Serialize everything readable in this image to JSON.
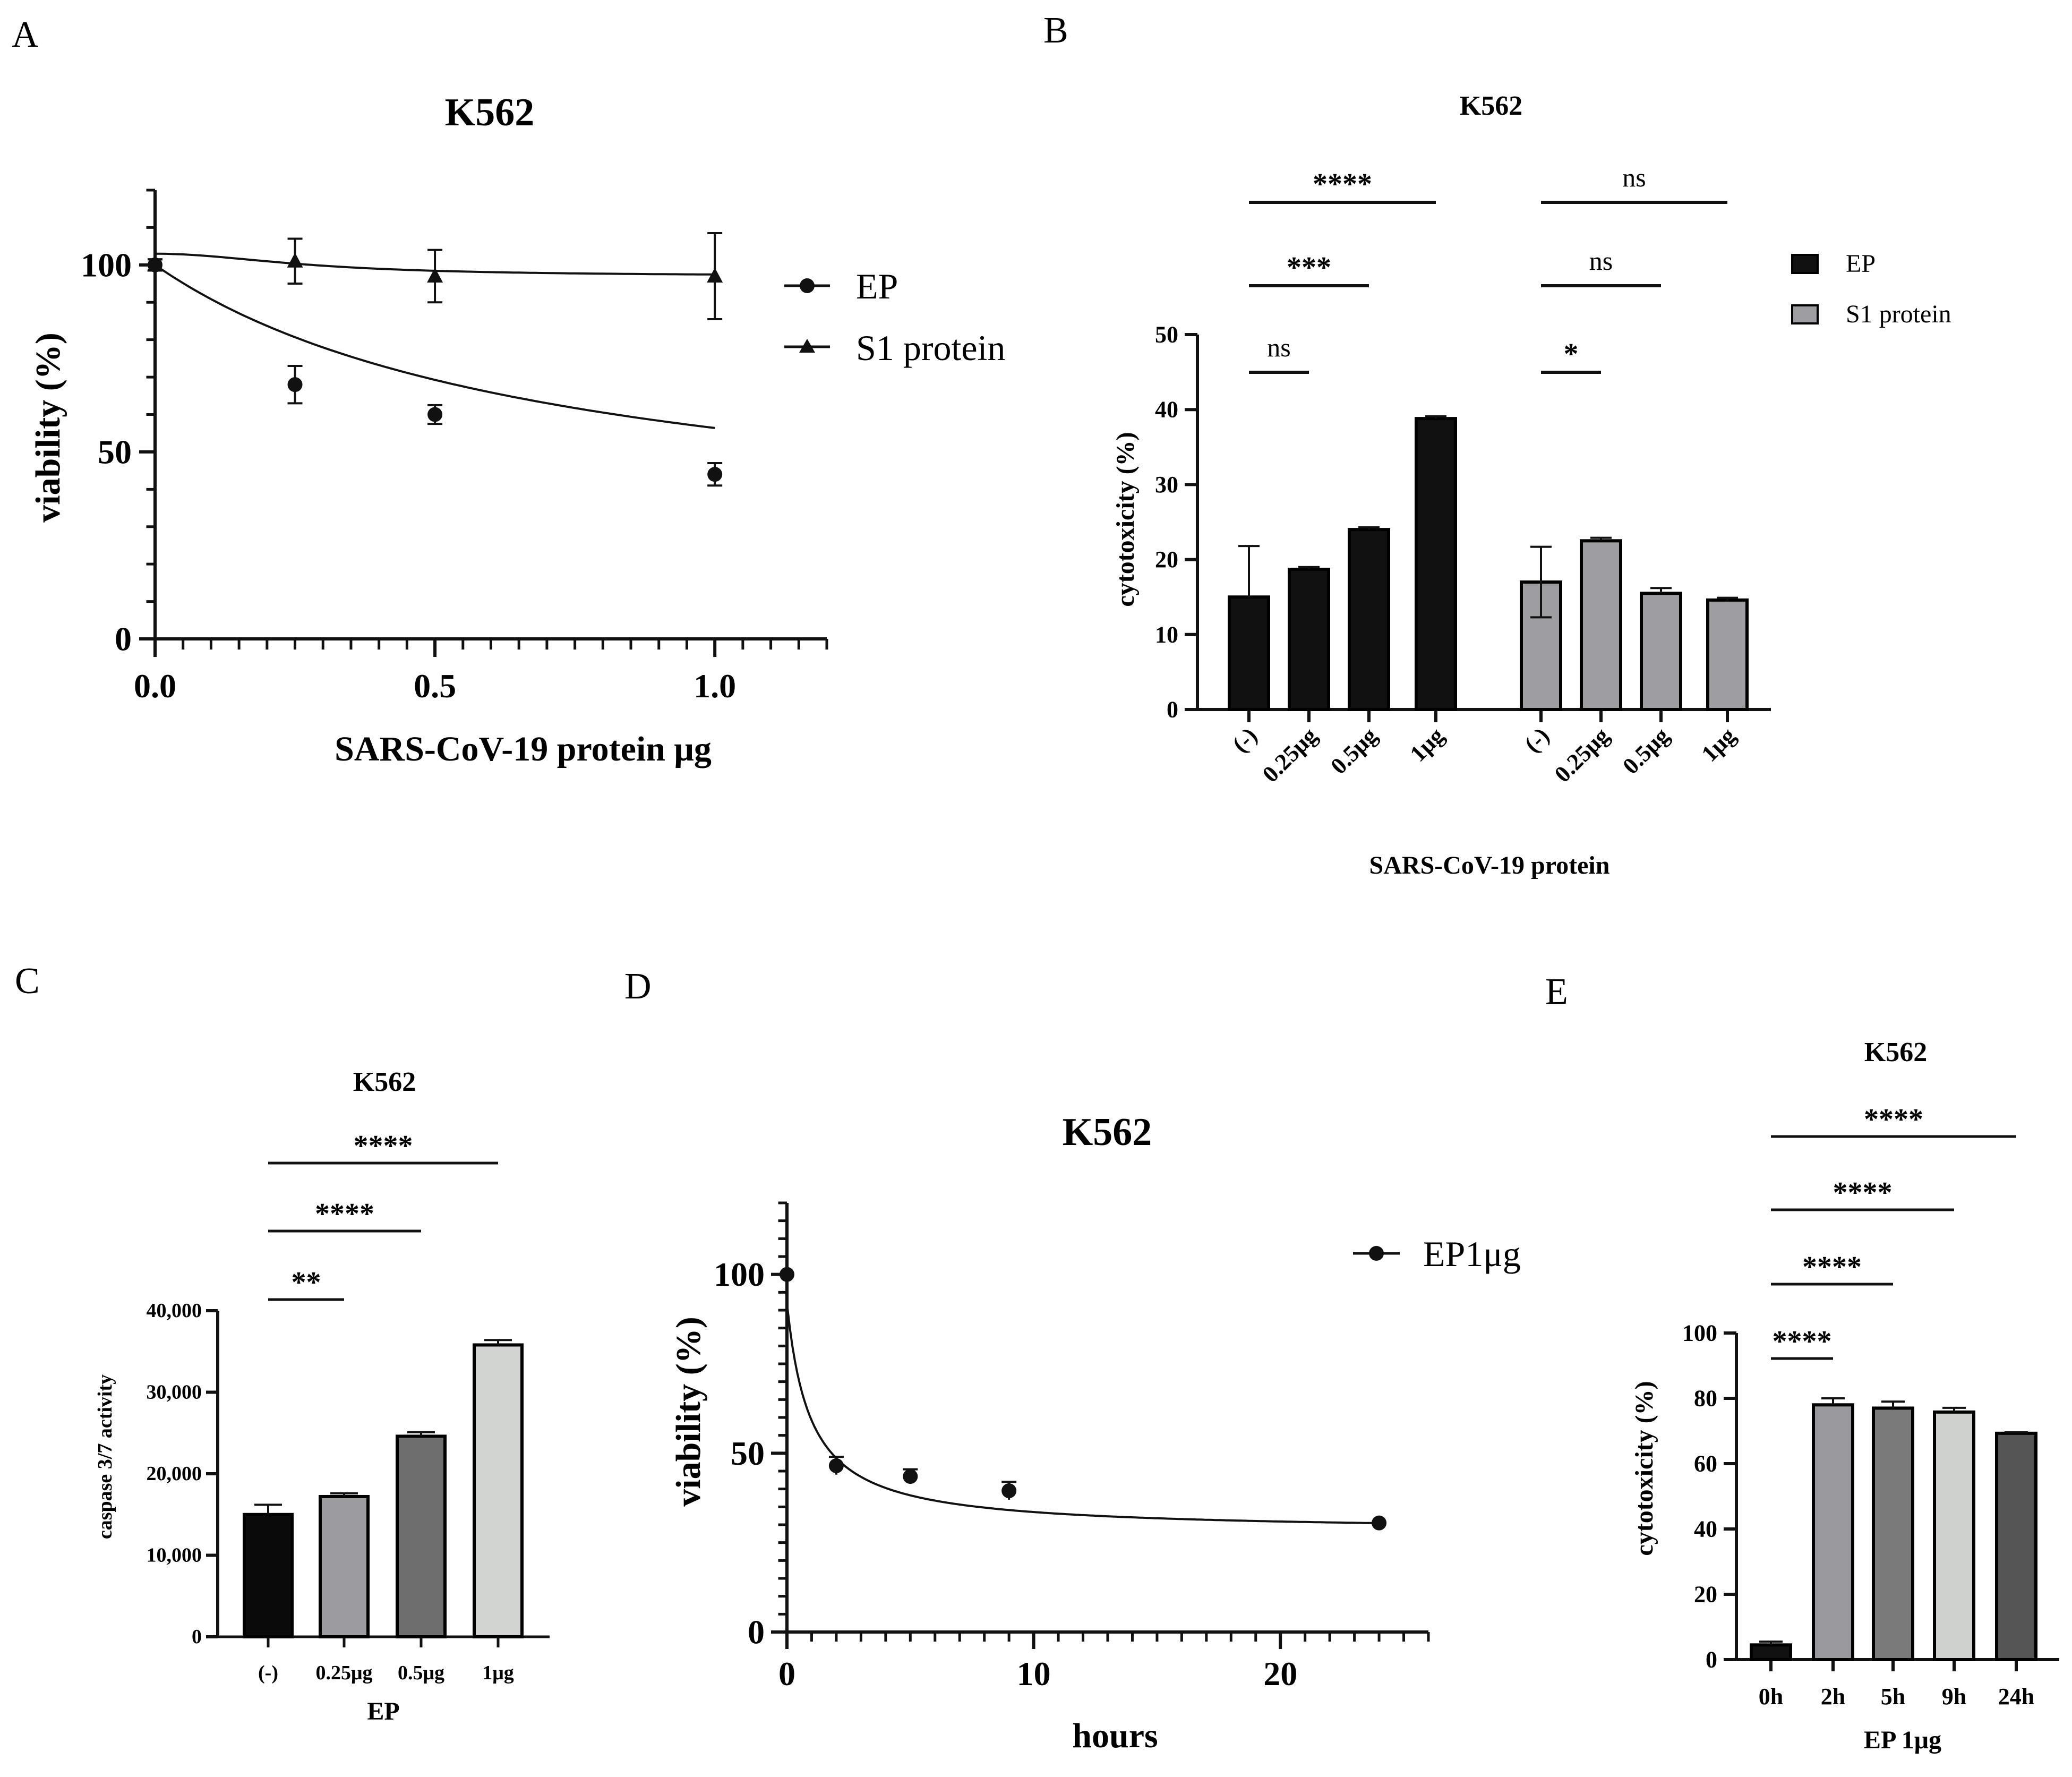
{
  "chart_data": [
    {
      "panel": "A",
      "type": "line",
      "title": "K562",
      "xlabel": "SARS-CoV-19 protein μg",
      "ylabel": "viability (%)",
      "xlim": [
        0,
        1.2
      ],
      "ylim": [
        0,
        120
      ],
      "x_ticks": [
        "0.0",
        "0.5",
        "1.0"
      ],
      "y_ticks": [
        "0",
        "50",
        "100"
      ],
      "legend": [
        "EP",
        "S1 protein"
      ],
      "series": [
        {
          "name": "EP",
          "marker": "circle",
          "x": [
            0,
            0.25,
            0.5,
            1.0
          ],
          "values": [
            100,
            68,
            60,
            44
          ],
          "errors": [
            1.5,
            5,
            2.5,
            3
          ]
        },
        {
          "name": "S1 protein",
          "marker": "triangle",
          "x": [
            0,
            0.25,
            0.5,
            1.0
          ],
          "values": [
            100,
            101,
            97,
            97
          ],
          "errors": [
            1.5,
            6,
            7,
            11.5
          ]
        }
      ]
    },
    {
      "panel": "B",
      "type": "bar",
      "title": "K562",
      "xlabel": "SARS-CoV-19 protein",
      "ylabel": "cytotoxicity (%)",
      "ylim": [
        0,
        50
      ],
      "y_ticks": [
        "0",
        "10",
        "20",
        "30",
        "40",
        "50"
      ],
      "categories": [
        "(-)",
        "0.25μg",
        "0.5μg",
        "1μg"
      ],
      "legend": [
        "EP",
        "S1 protein"
      ],
      "series": [
        {
          "name": "EP",
          "color": "#111111",
          "values": [
            15,
            18.7,
            24,
            38.8
          ],
          "errors": [
            6.8,
            0.3,
            0.3,
            0.3
          ]
        },
        {
          "name": "S1 protein",
          "color": "#9e9ea2",
          "values": [
            17,
            22.5,
            15.5,
            14.6
          ],
          "errors": [
            4.7,
            0.4,
            0.7,
            0.3
          ]
        }
      ],
      "significance": [
        {
          "group": "EP",
          "label": "ns"
        },
        {
          "group": "EP",
          "label": "***"
        },
        {
          "group": "EP",
          "label": "****"
        },
        {
          "group": "S1 protein",
          "label": "*"
        },
        {
          "group": "S1 protein",
          "label": "ns"
        },
        {
          "group": "S1 protein",
          "label": "ns"
        }
      ]
    },
    {
      "panel": "C",
      "type": "bar",
      "title": "K562",
      "xlabel": "EP",
      "ylabel": "caspase 3/7 activity",
      "ylim": [
        0,
        40000
      ],
      "y_ticks": [
        "0",
        "10,000",
        "20,000",
        "30,000",
        "40,000"
      ],
      "categories": [
        "(-)",
        "0.25μg",
        "0.5μg",
        "1μg"
      ],
      "colors": [
        "#0a0a0a",
        "#9c9ca0",
        "#6e6e6e",
        "#d2d4d2"
      ],
      "values": [
        15000,
        17200,
        24600,
        35800
      ],
      "errors": [
        1200,
        400,
        500,
        600
      ],
      "significance": [
        "**",
        "****",
        "****"
      ]
    },
    {
      "panel": "D",
      "type": "line",
      "title": "K562",
      "xlabel": "hours",
      "ylabel": "viability (%)",
      "xlim": [
        0,
        26
      ],
      "ylim": [
        0,
        120
      ],
      "x_ticks": [
        "0",
        "10",
        "20"
      ],
      "y_ticks": [
        "0",
        "50",
        "100"
      ],
      "legend": [
        "EP1μg"
      ],
      "series": [
        {
          "name": "EP1μg",
          "x": [
            0,
            2,
            5,
            9,
            24
          ],
          "values": [
            100,
            46.5,
            43.5,
            39.5,
            30.5
          ],
          "errors": [
            0,
            2.5,
            2,
            2.5,
            0
          ]
        }
      ]
    },
    {
      "panel": "E",
      "type": "bar",
      "title": "K562",
      "xlabel": "EP 1μg",
      "ylabel": "cytotoxicity (%)",
      "ylim": [
        0,
        100
      ],
      "y_ticks": [
        "0",
        "20",
        "40",
        "60",
        "80",
        "100"
      ],
      "categories": [
        "0h",
        "2h",
        "5h",
        "9h",
        "24h"
      ],
      "colors": [
        "#111111",
        "#9a9a9e",
        "#7a7a7a",
        "#cfd1cf",
        "#555555"
      ],
      "values": [
        4.5,
        78,
        77,
        75.8,
        69.3
      ],
      "errors": [
        1,
        2,
        2,
        1.3,
        0.3
      ],
      "significance": [
        "****",
        "****",
        "****",
        "****"
      ]
    }
  ],
  "panel_letters": [
    "A",
    "B",
    "C",
    "D",
    "E"
  ]
}
